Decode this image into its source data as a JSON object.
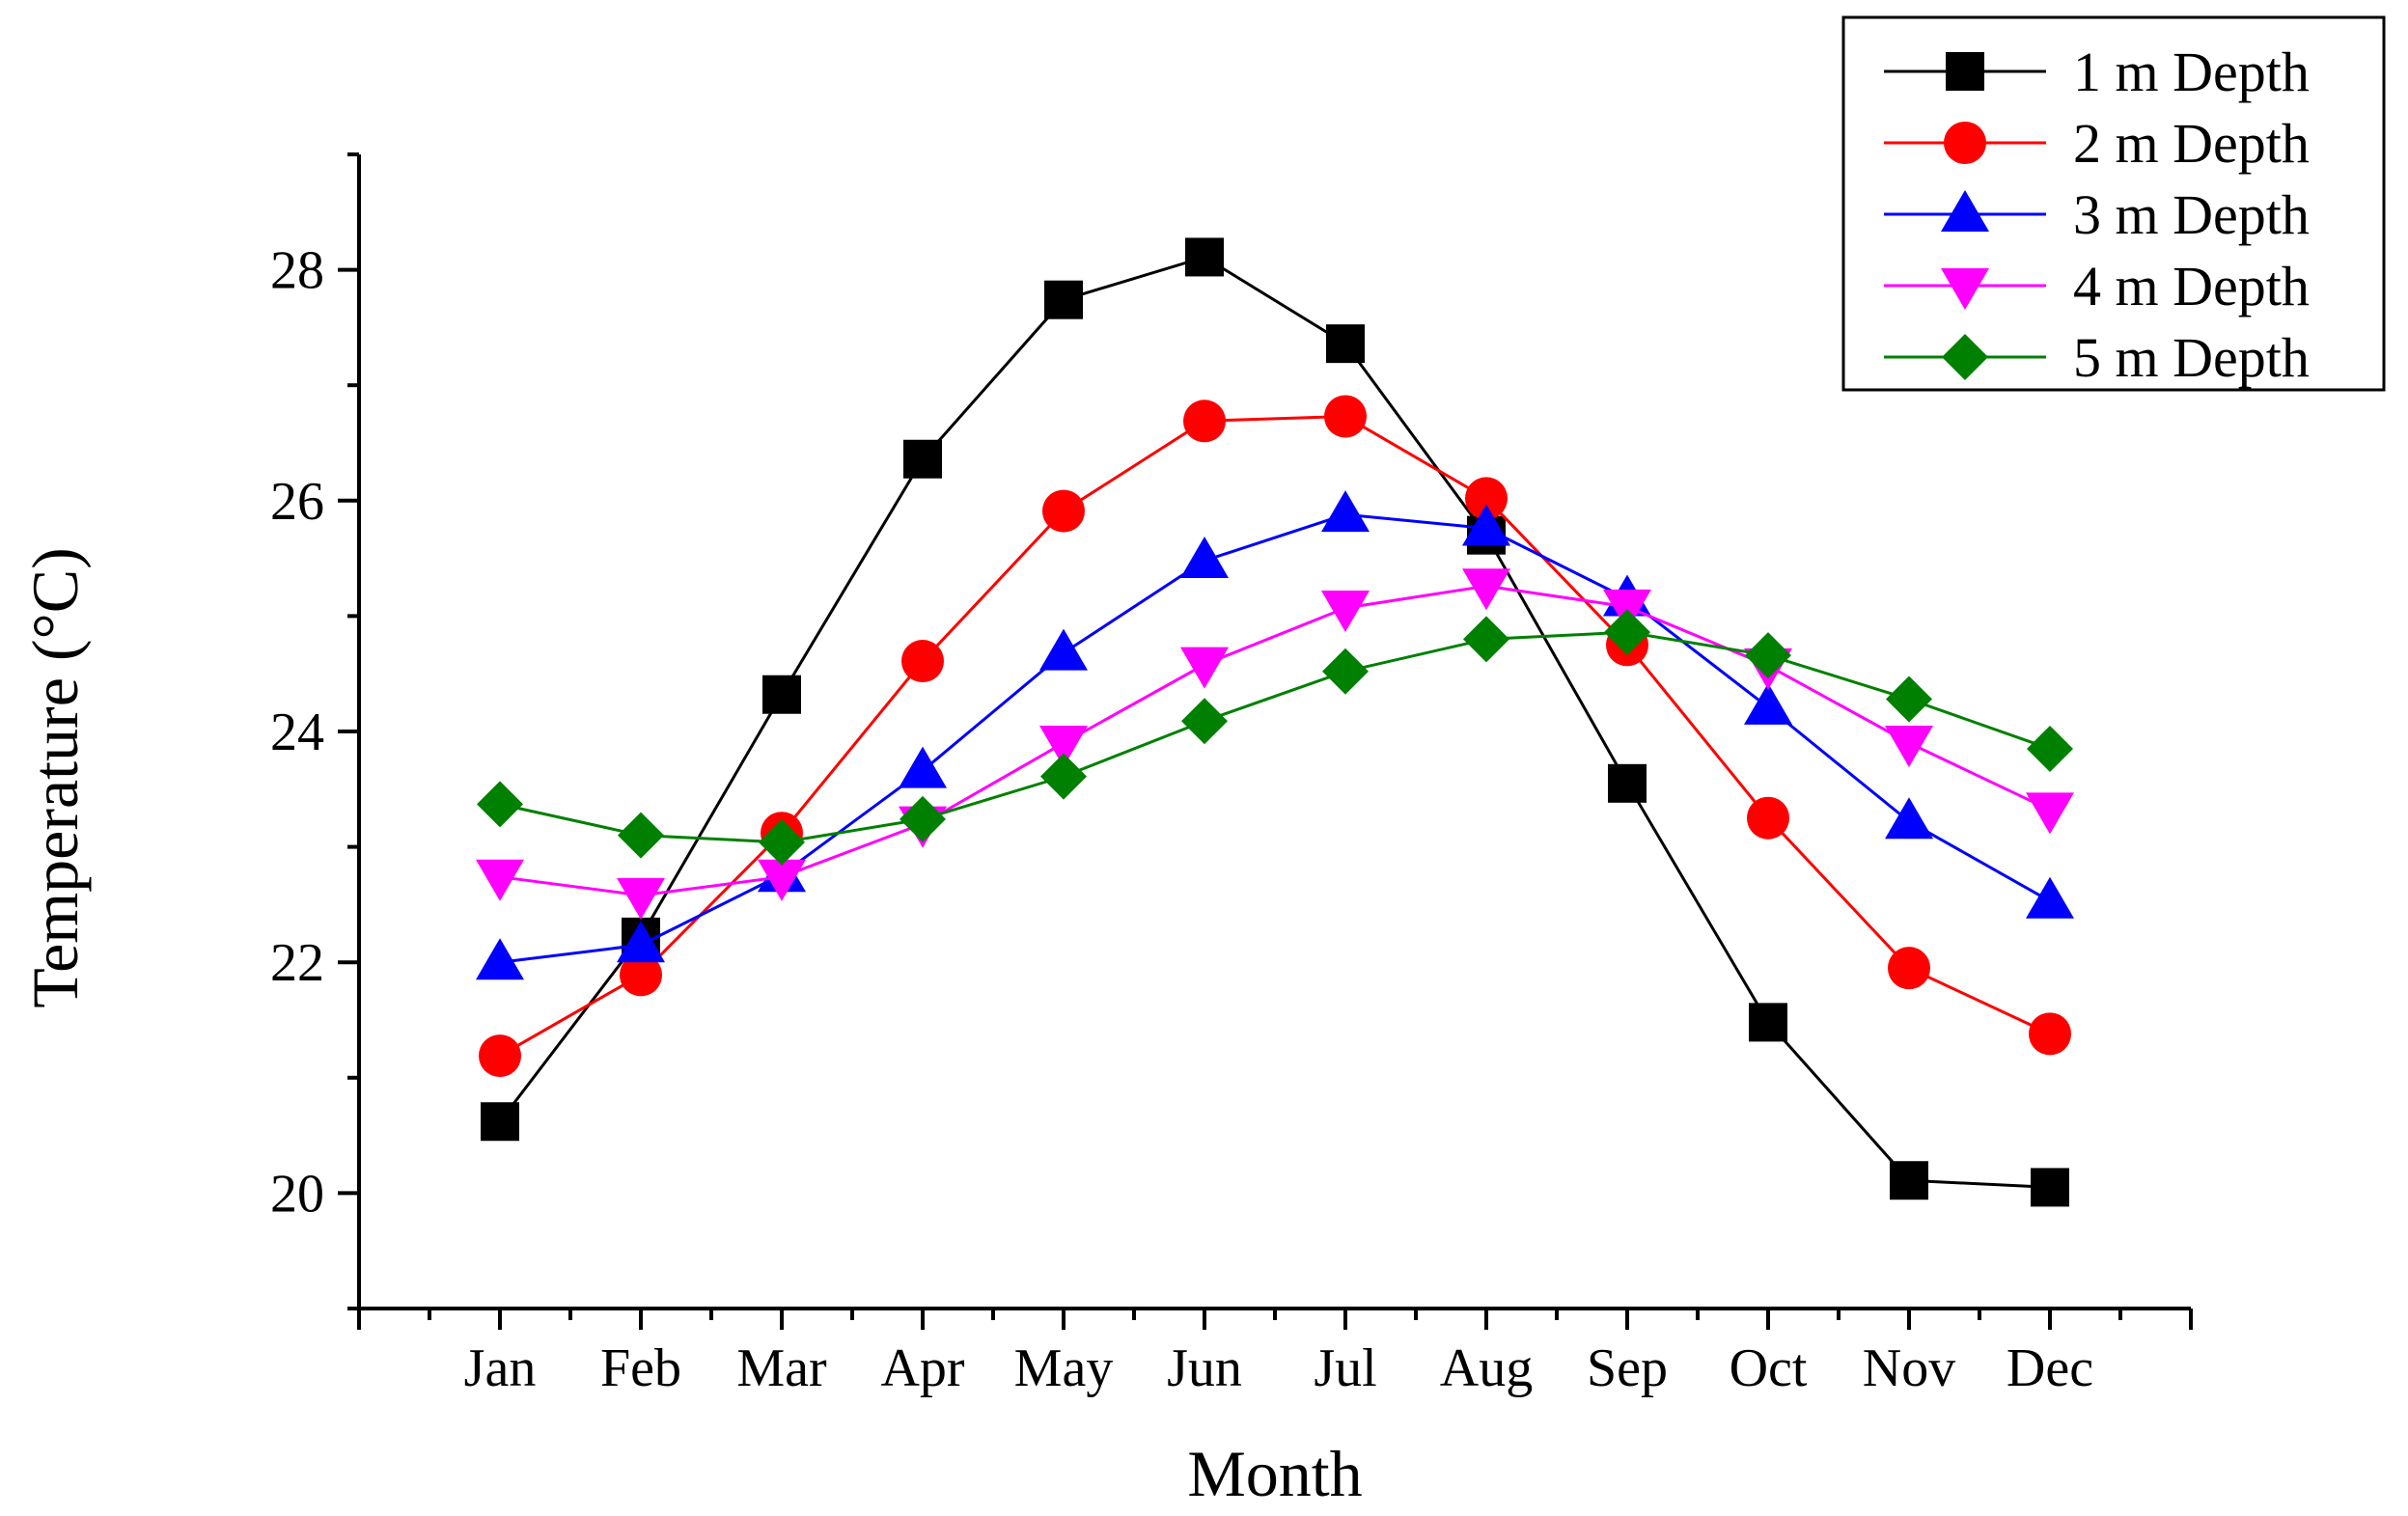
{
  "chart_data": {
    "type": "line",
    "title": "",
    "xlabel": "Month",
    "ylabel": "Temperature (°C)",
    "categories": [
      "Jan",
      "Feb",
      "Mar",
      "Apr",
      "May",
      "Jun",
      "Jul",
      "Aug",
      "Sep",
      "Oct",
      "Nov",
      "Dec"
    ],
    "ylim": [
      19,
      29
    ],
    "yticks": [
      20,
      22,
      24,
      26,
      28
    ],
    "legend_position": "top-right",
    "series": [
      {
        "name": "1 m Depth",
        "color": "#000000",
        "marker": "square",
        "values": [
          20.62,
          22.22,
          24.32,
          26.36,
          27.74,
          28.11,
          27.36,
          25.7,
          23.55,
          21.48,
          20.11,
          20.05
        ]
      },
      {
        "name": "2 m Depth",
        "color": "#ff0000",
        "marker": "circle",
        "values": [
          21.19,
          21.89,
          23.12,
          24.61,
          25.91,
          26.69,
          26.73,
          26.02,
          24.75,
          23.25,
          21.95,
          21.38
        ]
      },
      {
        "name": "3 m Depth",
        "color": "#0000ff",
        "marker": "triangle-up",
        "values": [
          22.0,
          22.15,
          22.76,
          23.66,
          24.68,
          25.48,
          25.88,
          25.76,
          25.15,
          24.21,
          23.22,
          22.53
        ]
      },
      {
        "name": "4 m Depth",
        "color": "#ff00ff",
        "marker": "triangle-down",
        "values": [
          22.74,
          22.58,
          22.74,
          23.2,
          23.9,
          24.58,
          25.07,
          25.26,
          25.08,
          24.57,
          23.9,
          23.32
        ]
      },
      {
        "name": "5 m Depth",
        "color": "#008000",
        "marker": "diamond",
        "values": [
          23.37,
          23.1,
          23.04,
          23.24,
          23.61,
          24.09,
          24.52,
          24.8,
          24.86,
          24.66,
          24.28,
          23.85
        ]
      }
    ]
  }
}
